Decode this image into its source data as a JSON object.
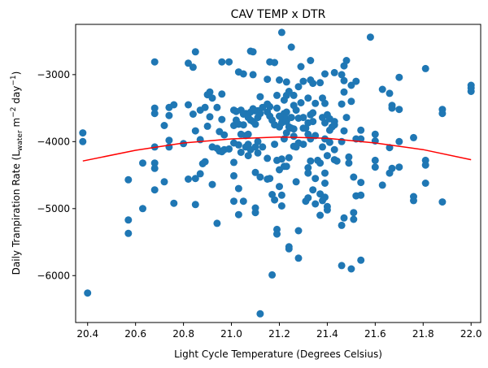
{
  "chart_data": {
    "type": "scatter",
    "title": "CAV TEMP x DTR",
    "xlabel": "Light Cycle Temperature (Degrees Celsius)",
    "ylabel": {
      "prefix": "Daily Tranpiration Rate (L",
      "subscript": "water",
      "middle": " m",
      "sup1": "−2",
      "middle2": " day",
      "sup2": "−1",
      "suffix": ")"
    },
    "xlim": [
      20.35,
      22.04
    ],
    "ylim": [
      -6700,
      -2250
    ],
    "xticks": [
      20.4,
      20.6,
      20.8,
      21.0,
      21.2,
      21.4,
      21.6,
      21.8,
      22.0
    ],
    "xtick_labels": [
      "20.4",
      "20.6",
      "20.8",
      "21.0",
      "21.2",
      "21.4",
      "21.6",
      "21.8",
      "22.0"
    ],
    "yticks": [
      -6000,
      -5000,
      -4000,
      -3000
    ],
    "ytick_labels": [
      "−6000",
      "−5000",
      "−4000",
      "−3000"
    ],
    "grid": false,
    "colors": {
      "points": "#1f77b4",
      "fit": "#ff0000",
      "axes": "#000000"
    },
    "fit_curve": {
      "x": [
        20.38,
        20.6,
        20.8,
        21.0,
        21.2,
        21.4,
        21.6,
        21.8,
        22.0
      ],
      "y": [
        -4290,
        -4130,
        -4020,
        -3960,
        -3930,
        -3950,
        -4020,
        -4120,
        -4270
      ]
    },
    "points": [
      [
        20.38,
        -3870
      ],
      [
        20.38,
        -4000
      ],
      [
        20.4,
        -6260
      ],
      [
        20.57,
        -4570
      ],
      [
        20.57,
        -5170
      ],
      [
        20.57,
        -5370
      ],
      [
        20.63,
        -4320
      ],
      [
        20.63,
        -5000
      ],
      [
        20.68,
        -2810
      ],
      [
        20.68,
        -3500
      ],
      [
        20.68,
        -3580
      ],
      [
        20.68,
        -4080
      ],
      [
        20.68,
        -4320
      ],
      [
        20.68,
        -4400
      ],
      [
        20.68,
        -4720
      ],
      [
        20.72,
        -3760
      ],
      [
        20.72,
        -4600
      ],
      [
        20.74,
        -3490
      ],
      [
        20.74,
        -3610
      ],
      [
        20.74,
        -3980
      ],
      [
        20.74,
        -4080
      ],
      [
        20.76,
        -3450
      ],
      [
        20.76,
        -4920
      ],
      [
        20.8,
        -4030
      ],
      [
        20.82,
        -2830
      ],
      [
        20.82,
        -3450
      ],
      [
        20.82,
        -4560
      ],
      [
        20.84,
        -2890
      ],
      [
        20.84,
        -3590
      ],
      [
        20.85,
        -2660
      ],
      [
        20.85,
        -3840
      ],
      [
        20.85,
        -4550
      ],
      [
        20.85,
        -4940
      ],
      [
        20.87,
        -3530
      ],
      [
        20.87,
        -3970
      ],
      [
        20.87,
        -4480
      ],
      [
        20.88,
        -4330
      ],
      [
        20.89,
        -3490
      ],
      [
        20.89,
        -4300
      ],
      [
        20.9,
        -3300
      ],
      [
        20.9,
        -3770
      ],
      [
        20.91,
        -3260
      ],
      [
        20.91,
        -3630
      ],
      [
        20.92,
        -3350
      ],
      [
        20.92,
        -4080
      ],
      [
        20.92,
        -4640
      ],
      [
        20.94,
        -3490
      ],
      [
        20.94,
        -4100
      ],
      [
        20.94,
        -5220
      ],
      [
        20.95,
        -3850
      ],
      [
        20.95,
        -4140
      ],
      [
        20.96,
        -2810
      ],
      [
        20.96,
        -3290
      ],
      [
        20.96,
        -3670
      ],
      [
        20.96,
        -4150
      ],
      [
        20.97,
        -3900
      ],
      [
        20.97,
        -4120
      ],
      [
        20.99,
        -2810
      ],
      [
        20.99,
        -4110
      ],
      [
        21.01,
        -3530
      ],
      [
        21.01,
        -3760
      ],
      [
        21.01,
        -4020
      ],
      [
        21.01,
        -4310
      ],
      [
        21.01,
        -4510
      ],
      [
        21.01,
        -4890
      ],
      [
        21.02,
        -3550
      ],
      [
        21.02,
        -3680
      ],
      [
        21.03,
        -2960
      ],
      [
        21.03,
        -3740
      ],
      [
        21.03,
        -4050
      ],
      [
        21.03,
        -4700
      ],
      [
        21.03,
        -5090
      ],
      [
        21.04,
        -3530
      ],
      [
        21.04,
        -3890
      ],
      [
        21.04,
        -4160
      ],
      [
        21.05,
        -2990
      ],
      [
        21.05,
        -3590
      ],
      [
        21.05,
        -3750
      ],
      [
        21.05,
        -4890
      ],
      [
        21.06,
        -3580
      ],
      [
        21.06,
        -3910
      ],
      [
        21.06,
        -4080
      ],
      [
        21.07,
        -3640
      ],
      [
        21.07,
        -3890
      ],
      [
        21.07,
        -4040
      ],
      [
        21.07,
        -4210
      ],
      [
        21.08,
        -2650
      ],
      [
        21.08,
        -3560
      ],
      [
        21.08,
        -3680
      ],
      [
        21.08,
        -4120
      ],
      [
        21.09,
        -2660
      ],
      [
        21.09,
        -3000
      ],
      [
        21.09,
        -3510
      ],
      [
        21.09,
        -3700
      ],
      [
        21.1,
        -3540
      ],
      [
        21.1,
        -3740
      ],
      [
        21.1,
        -4080
      ],
      [
        21.1,
        -4460
      ],
      [
        21.1,
        -4990
      ],
      [
        21.1,
        -5060
      ],
      [
        21.11,
        -3540
      ],
      [
        21.11,
        -3640
      ],
      [
        21.11,
        -4000
      ],
      [
        21.11,
        -4170
      ],
      [
        21.12,
        -3580
      ],
      [
        21.12,
        -3330
      ],
      [
        21.12,
        -4530
      ],
      [
        21.12,
        -6570
      ],
      [
        21.13,
        -3490
      ],
      [
        21.13,
        -4080
      ],
      [
        21.15,
        -3070
      ],
      [
        21.15,
        -3440
      ],
      [
        21.15,
        -3560
      ],
      [
        21.15,
        -4560
      ],
      [
        21.15,
        -4250
      ],
      [
        21.16,
        -2810
      ],
      [
        21.16,
        -3480
      ],
      [
        21.16,
        -3620
      ],
      [
        21.16,
        -4550
      ],
      [
        21.17,
        -3680
      ],
      [
        21.17,
        -4790
      ],
      [
        21.17,
        -5990
      ],
      [
        21.18,
        -2820
      ],
      [
        21.18,
        -3750
      ],
      [
        21.18,
        -4040
      ],
      [
        21.18,
        -4870
      ],
      [
        21.19,
        -3310
      ],
      [
        21.19,
        -3500
      ],
      [
        21.19,
        -4280
      ],
      [
        21.19,
        -5310
      ],
      [
        21.19,
        -5380
      ],
      [
        21.2,
        -3080
      ],
      [
        21.2,
        -3620
      ],
      [
        21.2,
        -3780
      ],
      [
        21.2,
        -4420
      ],
      [
        21.2,
        -4670
      ],
      [
        21.21,
        -2370
      ],
      [
        21.21,
        -3650
      ],
      [
        21.21,
        -3720
      ],
      [
        21.21,
        -4260
      ],
      [
        21.21,
        -4800
      ],
      [
        21.21,
        -4960
      ],
      [
        21.22,
        -3380
      ],
      [
        21.22,
        -3580
      ],
      [
        21.22,
        -3960
      ],
      [
        21.22,
        -4370
      ],
      [
        21.23,
        -3110
      ],
      [
        21.23,
        -3310
      ],
      [
        21.23,
        -3560
      ],
      [
        21.23,
        -3660
      ],
      [
        21.23,
        -3700
      ],
      [
        21.23,
        -3870
      ],
      [
        21.23,
        -4370
      ],
      [
        21.24,
        -3250
      ],
      [
        21.24,
        -3780
      ],
      [
        21.24,
        -4240
      ],
      [
        21.24,
        -5570
      ],
      [
        21.24,
        -5600
      ],
      [
        21.25,
        -2590
      ],
      [
        21.25,
        -3640
      ],
      [
        21.25,
        -3800
      ],
      [
        21.26,
        -3310
      ],
      [
        21.26,
        -3460
      ],
      [
        21.26,
        -3810
      ],
      [
        21.26,
        -3920
      ],
      [
        21.26,
        -4070
      ],
      [
        21.27,
        -3530
      ],
      [
        21.27,
        -4080
      ],
      [
        21.27,
        -4600
      ],
      [
        21.28,
        -3180
      ],
      [
        21.28,
        -3650
      ],
      [
        21.28,
        -4020
      ],
      [
        21.28,
        -5330
      ],
      [
        21.28,
        -5740
      ],
      [
        21.29,
        -2880
      ],
      [
        21.29,
        -3420
      ],
      [
        21.3,
        -3100
      ],
      [
        21.3,
        -3640
      ],
      [
        21.3,
        -3800
      ],
      [
        21.3,
        -4040
      ],
      [
        21.31,
        -3800
      ],
      [
        21.31,
        -4890
      ],
      [
        21.32,
        -3350
      ],
      [
        21.32,
        -3720
      ],
      [
        21.32,
        -3890
      ],
      [
        21.32,
        -4390
      ],
      [
        21.32,
        -4470
      ],
      [
        21.32,
        -4840
      ],
      [
        21.33,
        -2790
      ],
      [
        21.33,
        -3080
      ],
      [
        21.33,
        -3600
      ],
      [
        21.33,
        -3960
      ],
      [
        21.33,
        -4290
      ],
      [
        21.34,
        -3130
      ],
      [
        21.34,
        -3570
      ],
      [
        21.34,
        -3700
      ],
      [
        21.34,
        -4720
      ],
      [
        21.35,
        -3430
      ],
      [
        21.35,
        -3910
      ],
      [
        21.35,
        -4550
      ],
      [
        21.35,
        -4930
      ],
      [
        21.36,
        -4280
      ],
      [
        21.37,
        -3120
      ],
      [
        21.37,
        -4320
      ],
      [
        21.37,
        -4780
      ],
      [
        21.37,
        -5100
      ],
      [
        21.38,
        -3350
      ],
      [
        21.38,
        -3640
      ],
      [
        21.38,
        -4080
      ],
      [
        21.38,
        -4880
      ],
      [
        21.39,
        -2990
      ],
      [
        21.39,
        -3430
      ],
      [
        21.39,
        -3720
      ],
      [
        21.39,
        -3960
      ],
      [
        21.39,
        -4470
      ],
      [
        21.39,
        -4620
      ],
      [
        21.39,
        -4830
      ],
      [
        21.4,
        -3600
      ],
      [
        21.4,
        -4210
      ],
      [
        21.4,
        -4970
      ],
      [
        21.4,
        -5020
      ],
      [
        21.41,
        -3660
      ],
      [
        21.41,
        -3830
      ],
      [
        21.41,
        -4010
      ],
      [
        21.42,
        -3780
      ],
      [
        21.43,
        -2970
      ],
      [
        21.43,
        -3700
      ],
      [
        21.43,
        -3750
      ],
      [
        21.43,
        -4120
      ],
      [
        21.43,
        -4270
      ],
      [
        21.44,
        -4290
      ],
      [
        21.46,
        -3000
      ],
      [
        21.46,
        -3440
      ],
      [
        21.46,
        -4000
      ],
      [
        21.46,
        -5250
      ],
      [
        21.46,
        -5850
      ],
      [
        21.47,
        -2870
      ],
      [
        21.47,
        -3090
      ],
      [
        21.47,
        -3260
      ],
      [
        21.47,
        -3840
      ],
      [
        21.47,
        -5140
      ],
      [
        21.48,
        -2790
      ],
      [
        21.48,
        -3640
      ],
      [
        21.49,
        -4230
      ],
      [
        21.49,
        -4320
      ],
      [
        21.5,
        -3160
      ],
      [
        21.5,
        -3400
      ],
      [
        21.5,
        -5900
      ],
      [
        21.51,
        -5060
      ],
      [
        21.51,
        -5160
      ],
      [
        21.51,
        -4530
      ],
      [
        21.52,
        -3100
      ],
      [
        21.52,
        -3960
      ],
      [
        21.52,
        -4810
      ],
      [
        21.54,
        -3830
      ],
      [
        21.54,
        -3960
      ],
      [
        21.54,
        -4610
      ],
      [
        21.54,
        -4800
      ],
      [
        21.54,
        -5770
      ],
      [
        21.58,
        -2440
      ],
      [
        21.6,
        -3890
      ],
      [
        21.6,
        -3990
      ],
      [
        21.6,
        -4280
      ],
      [
        21.6,
        -4380
      ],
      [
        21.63,
        -3220
      ],
      [
        21.63,
        -4650
      ],
      [
        21.66,
        -3280
      ],
      [
        21.66,
        -4090
      ],
      [
        21.66,
        -4470
      ],
      [
        21.67,
        -3460
      ],
      [
        21.67,
        -3500
      ],
      [
        21.67,
        -4400
      ],
      [
        21.7,
        -3040
      ],
      [
        21.7,
        -3520
      ],
      [
        21.7,
        -4000
      ],
      [
        21.7,
        -4380
      ],
      [
        21.76,
        -3940
      ],
      [
        21.76,
        -4820
      ],
      [
        21.76,
        -4880
      ],
      [
        21.81,
        -2910
      ],
      [
        21.81,
        -4280
      ],
      [
        21.81,
        -4350
      ],
      [
        21.81,
        -4620
      ],
      [
        21.88,
        -3520
      ],
      [
        21.88,
        -3580
      ],
      [
        21.88,
        -4900
      ],
      [
        22.0,
        -3160
      ],
      [
        22.0,
        -3200
      ],
      [
        22.0,
        -3250
      ]
    ]
  }
}
